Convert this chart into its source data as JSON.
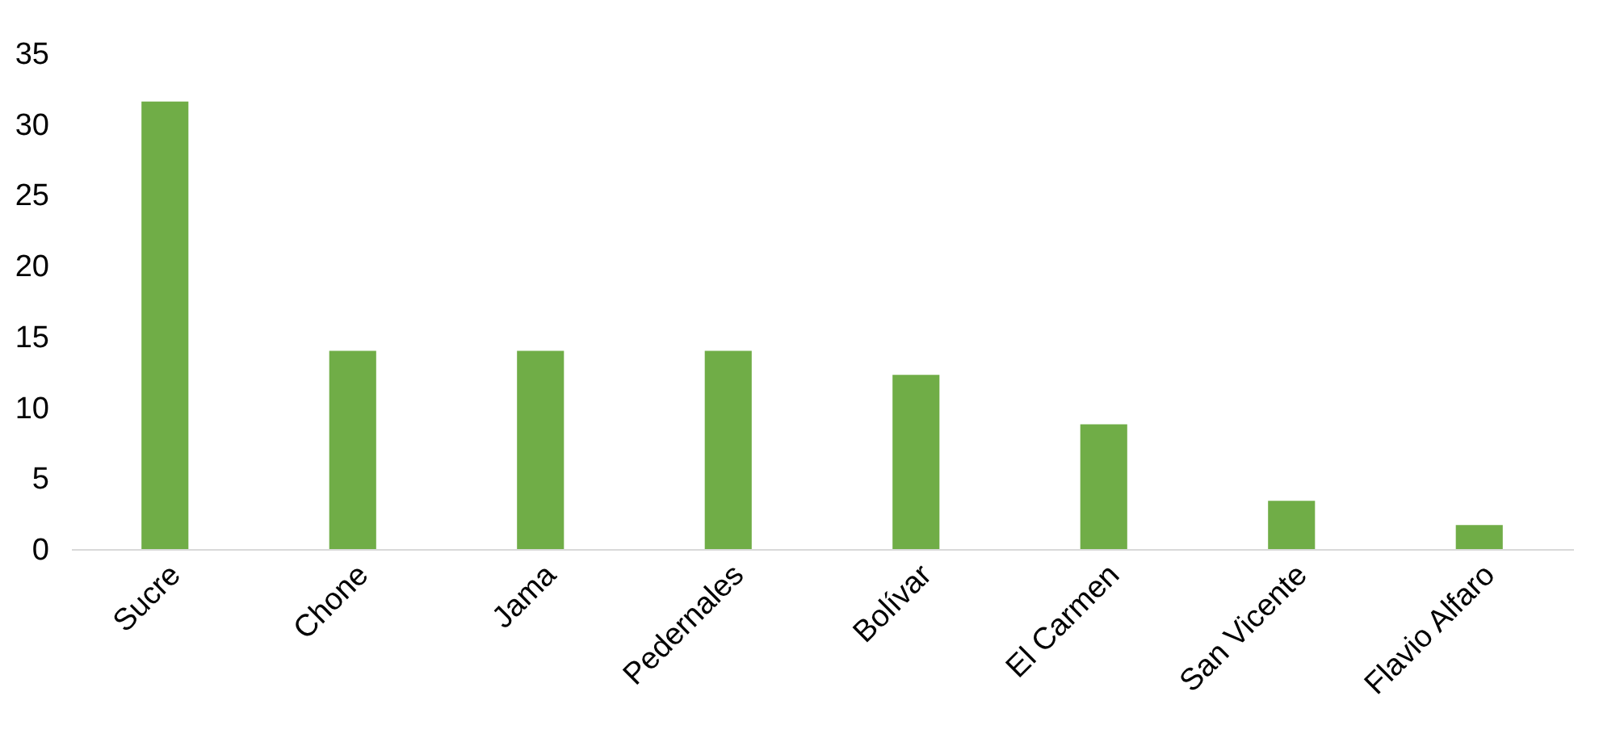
{
  "chart_data": {
    "type": "bar",
    "categories": [
      "Sucre",
      "Chone",
      "Jama",
      "Pedernales",
      "Bolívar",
      "El Carmen",
      "San Vicente",
      "Flavio Alfaro"
    ],
    "values": [
      31.6,
      14.0,
      14.0,
      14.0,
      12.3,
      8.8,
      3.4,
      1.7
    ],
    "color": "#70ad47",
    "ylim": [
      0,
      35
    ],
    "yticks": [
      0,
      5,
      10,
      15,
      20,
      25,
      30,
      35
    ],
    "grid": false,
    "legend": false
  }
}
